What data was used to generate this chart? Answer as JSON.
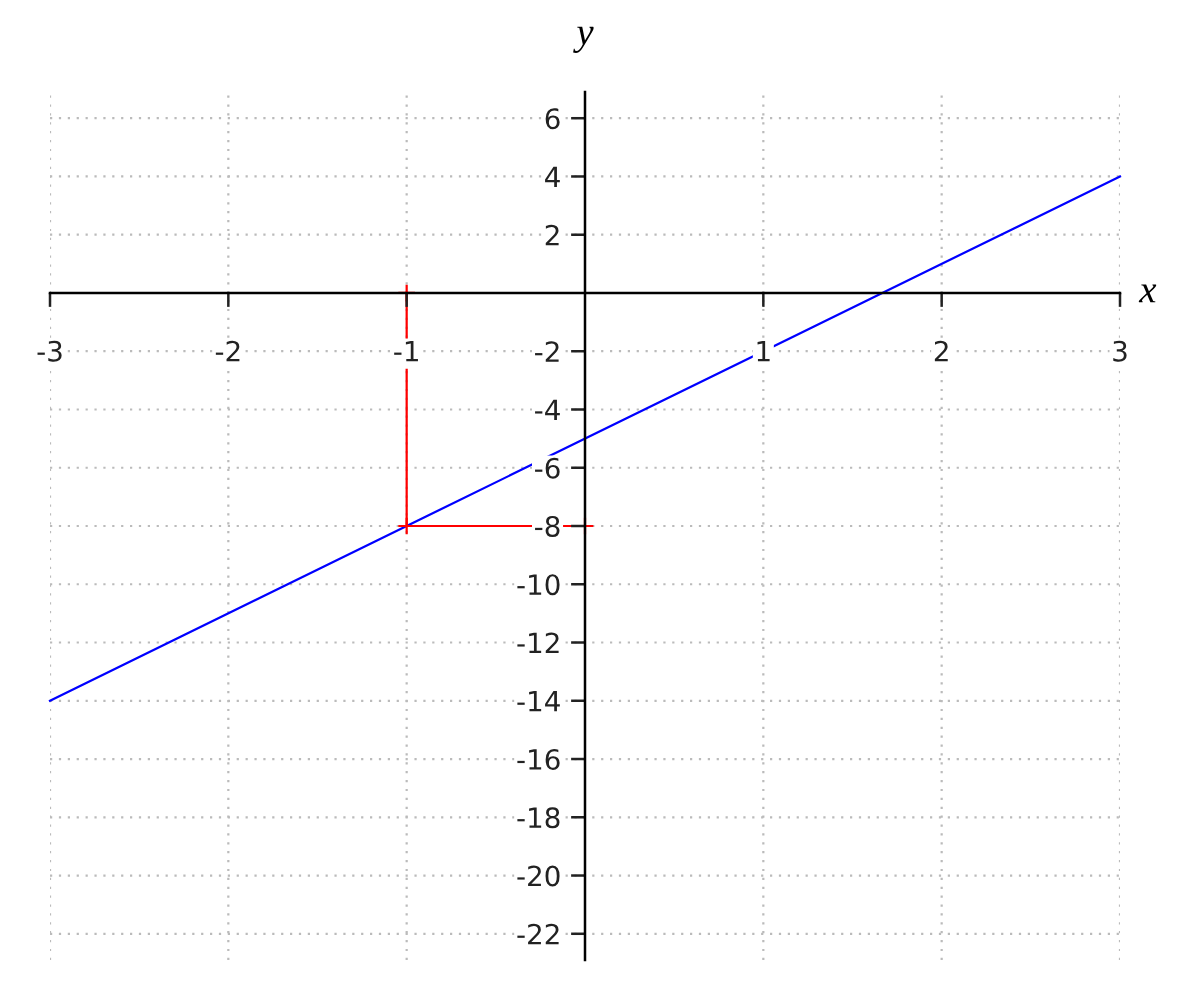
{
  "chart_data": {
    "type": "line",
    "xlabel": "x",
    "ylabel": "y",
    "xlim": [
      -3,
      3
    ],
    "ylim": [
      -22.9,
      6.9
    ],
    "xticks": [
      -3,
      -2,
      -1,
      1,
      2,
      3
    ],
    "yticks": [
      -22,
      -20,
      -18,
      -16,
      -14,
      -12,
      -10,
      -8,
      -6,
      -4,
      -2,
      2,
      4,
      6
    ],
    "grid": true,
    "series": [
      {
        "color": "#0000ff",
        "x": [
          -3,
          3
        ],
        "values": [
          -14,
          4
        ]
      },
      {
        "color": "#ff0000",
        "x": [
          -1,
          -1,
          0
        ],
        "values": [
          0,
          -8,
          -8
        ],
        "marker": "cross"
      }
    ]
  }
}
